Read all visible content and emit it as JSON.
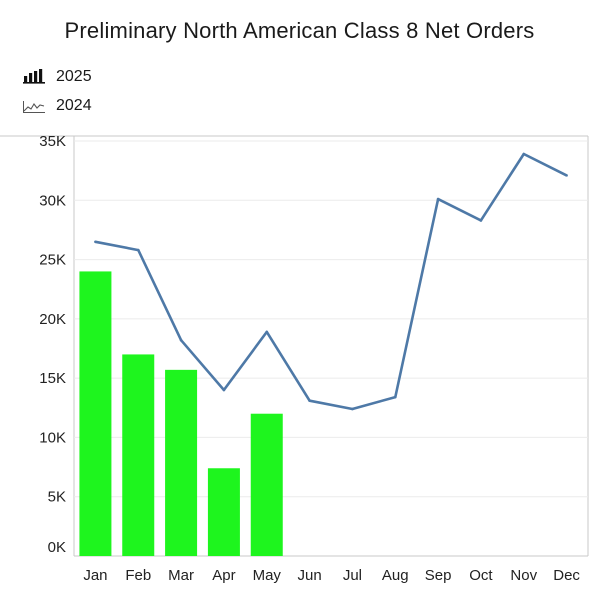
{
  "title": "Preliminary North American Class 8 Net Orders",
  "legend": [
    {
      "label": "2025",
      "icon": "bar-chart-icon"
    },
    {
      "label": "2024",
      "icon": "line-chart-icon"
    }
  ],
  "colors": {
    "bar": "#1ef51e",
    "line": "#4e79a7",
    "grid": "#ebebeb",
    "axis": "#c8c8c8"
  },
  "chart_data": {
    "type": "bar",
    "title": "Preliminary North American Class 8 Net Orders",
    "categories": [
      "Jan",
      "Feb",
      "Mar",
      "Apr",
      "May",
      "Jun",
      "Jul",
      "Aug",
      "Sep",
      "Oct",
      "Nov",
      "Dec"
    ],
    "ylim": [
      0,
      35000
    ],
    "yticks": [
      0,
      5000,
      10000,
      15000,
      20000,
      25000,
      30000,
      35000
    ],
    "ytick_labels": [
      "0K",
      "5K",
      "10K",
      "15K",
      "20K",
      "25K",
      "30K",
      "35K"
    ],
    "grid": true,
    "legend_position": "top-left",
    "series": [
      {
        "name": "2025",
        "type": "bar",
        "values": [
          24000,
          17000,
          15700,
          7400,
          12000,
          null,
          null,
          null,
          null,
          null,
          null,
          null
        ]
      },
      {
        "name": "2024",
        "type": "line",
        "values": [
          26500,
          25800,
          18200,
          14000,
          18900,
          13100,
          12400,
          13400,
          30100,
          28300,
          33900,
          32100
        ]
      }
    ]
  }
}
